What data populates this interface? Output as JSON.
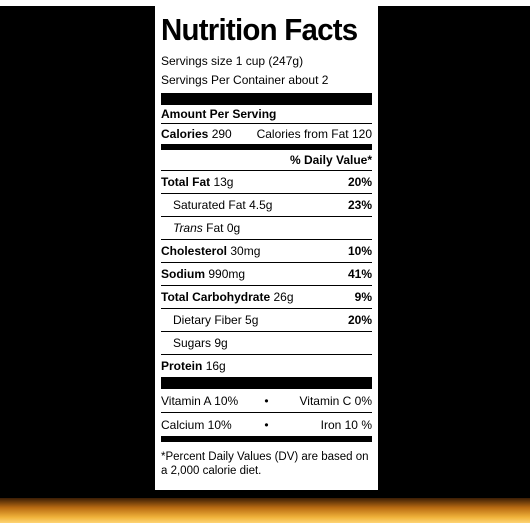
{
  "title": "Nutrition Facts",
  "serving_size": "Servings size 1 cup (247g)",
  "servings_per_container": "Servings Per Container  about 2",
  "amount_per_serving": "Amount Per Serving",
  "calories": {
    "label": "Calories",
    "value": "290",
    "from_fat_label": "Calories from Fat",
    "from_fat_value": "120"
  },
  "daily_value_header": "% Daily Value*",
  "nutrients": {
    "total_fat": {
      "label": "Total Fat",
      "amount": "13g",
      "dv": "20%"
    },
    "saturated_fat": {
      "label": "Saturated Fat",
      "amount": "4.5g",
      "dv": "23%"
    },
    "trans_fat": {
      "label": "Trans",
      "label_suffix": "Fat",
      "amount": "0g"
    },
    "cholesterol": {
      "label": "Cholesterol",
      "amount": "30mg",
      "dv": "10%"
    },
    "sodium": {
      "label": "Sodium",
      "amount": "990mg",
      "dv": "41%"
    },
    "total_carbohydrate": {
      "label": "Total Carbohydrate",
      "amount": "26g",
      "dv": "9%"
    },
    "dietary_fiber": {
      "label": "Dietary Fiber",
      "amount": "5g",
      "dv": "20%"
    },
    "sugars": {
      "label": "Sugars",
      "amount": "9g"
    },
    "protein": {
      "label": "Protein",
      "amount": "16g"
    }
  },
  "vitamins": [
    {
      "left": "Vitamin A 10%",
      "right": "Vitamin C 0%"
    },
    {
      "left": "Calcium 10%",
      "right": "Iron 10 %"
    }
  ],
  "separator": "•",
  "footnote": "*Percent Daily Values (DV) are based on a 2,000 calorie diet."
}
